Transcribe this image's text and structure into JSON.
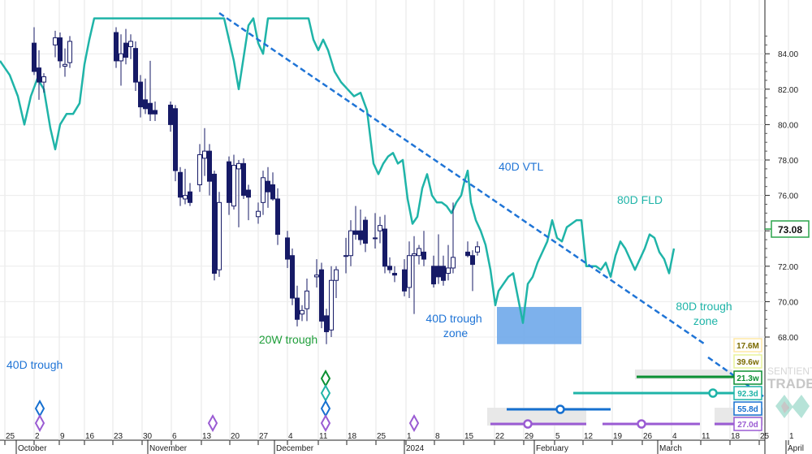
{
  "chart_data": {
    "type": "candlestick",
    "y_axis": {
      "range": [
        67.2,
        85.2
      ],
      "tick_labels": [
        "68.00",
        "70.00",
        "72.00",
        "74.00",
        "76.00",
        "78.00",
        "80.00",
        "82.00",
        "84.00"
      ],
      "position": "right"
    },
    "x_axis": {
      "tick_labels": [
        "25",
        "2",
        "9",
        "16",
        "23",
        "30",
        "6",
        "13",
        "20",
        "27",
        "4",
        "11",
        "18",
        "25",
        "1",
        "8",
        "15",
        "22",
        "29",
        "5",
        "12",
        "19",
        "26",
        "4",
        "11",
        "18",
        "25",
        "1"
      ],
      "month_labels": [
        "October",
        "November",
        "December",
        "2024",
        "February",
        "March",
        "April"
      ]
    },
    "last_price": "73.08",
    "candles": [
      {
        "x": 42,
        "o": 84.6,
        "h": 85.5,
        "l": 82.8,
        "c": 83.0,
        "bull": false
      },
      {
        "x": 48,
        "o": 83.2,
        "h": 84.2,
        "l": 81.4,
        "c": 82.4,
        "bull": false
      },
      {
        "x": 54,
        "o": 82.4,
        "h": 82.9,
        "l": 81.8,
        "c": 82.7,
        "bull": true
      },
      {
        "x": 68,
        "o": 84.5,
        "h": 85.3,
        "l": 83.8,
        "c": 84.9,
        "bull": true
      },
      {
        "x": 74,
        "o": 84.9,
        "h": 85.2,
        "l": 83.2,
        "c": 83.6,
        "bull": false
      },
      {
        "x": 80,
        "o": 83.3,
        "h": 84.3,
        "l": 82.7,
        "c": 83.4,
        "bull": true
      },
      {
        "x": 86,
        "o": 83.5,
        "h": 85.0,
        "l": 83.2,
        "c": 84.7,
        "bull": true
      },
      {
        "x": 143,
        "o": 85.2,
        "h": 85.5,
        "l": 83.2,
        "c": 83.6,
        "bull": false
      },
      {
        "x": 149,
        "o": 83.6,
        "h": 85.1,
        "l": 82.2,
        "c": 84.0,
        "bull": true
      },
      {
        "x": 155,
        "o": 84.6,
        "h": 85.4,
        "l": 83.4,
        "c": 83.8,
        "bull": false
      },
      {
        "x": 161,
        "o": 84.4,
        "h": 85.1,
        "l": 83.7,
        "c": 84.7,
        "bull": true
      },
      {
        "x": 167,
        "o": 84.3,
        "h": 84.7,
        "l": 81.9,
        "c": 82.4,
        "bull": false
      },
      {
        "x": 173,
        "o": 82.4,
        "h": 82.8,
        "l": 80.4,
        "c": 81.0,
        "bull": false
      },
      {
        "x": 179,
        "o": 81.4,
        "h": 82.6,
        "l": 80.6,
        "c": 80.9,
        "bull": false
      },
      {
        "x": 185,
        "o": 81.2,
        "h": 83.6,
        "l": 80.2,
        "c": 80.6,
        "bull": false
      },
      {
        "x": 191,
        "o": 80.8,
        "h": 81.3,
        "l": 80.2,
        "c": 80.6,
        "bull": false
      },
      {
        "x": 210,
        "o": 81.1,
        "h": 81.3,
        "l": 79.6,
        "c": 80.0,
        "bull": false
      },
      {
        "x": 216,
        "o": 80.9,
        "h": 81.1,
        "l": 76.8,
        "c": 77.4,
        "bull": false
      },
      {
        "x": 222,
        "o": 77.3,
        "h": 77.6,
        "l": 75.4,
        "c": 75.9,
        "bull": false
      },
      {
        "x": 228,
        "o": 75.8,
        "h": 77.5,
        "l": 75.5,
        "c": 76.0,
        "bull": true
      },
      {
        "x": 234,
        "o": 76.2,
        "h": 76.7,
        "l": 75.4,
        "c": 75.6,
        "bull": false
      },
      {
        "x": 246,
        "o": 76.6,
        "h": 78.9,
        "l": 76.2,
        "c": 78.3,
        "bull": true
      },
      {
        "x": 252,
        "o": 78.1,
        "h": 79.8,
        "l": 77.1,
        "c": 78.5,
        "bull": true
      },
      {
        "x": 258,
        "o": 78.5,
        "h": 78.9,
        "l": 76.0,
        "c": 76.8,
        "bull": false
      },
      {
        "x": 264,
        "o": 77.2,
        "h": 77.4,
        "l": 71.2,
        "c": 71.6,
        "bull": false
      },
      {
        "x": 270,
        "o": 71.8,
        "h": 76.2,
        "l": 71.4,
        "c": 75.6,
        "bull": true
      },
      {
        "x": 282,
        "o": 77.9,
        "h": 78.2,
        "l": 74.9,
        "c": 75.6,
        "bull": false
      },
      {
        "x": 288,
        "o": 75.4,
        "h": 78.3,
        "l": 75.2,
        "c": 77.7,
        "bull": true
      },
      {
        "x": 294,
        "o": 77.8,
        "h": 78.0,
        "l": 74.2,
        "c": 77.5,
        "bull": true
      },
      {
        "x": 300,
        "o": 77.8,
        "h": 78.1,
        "l": 75.8,
        "c": 76.0,
        "bull": false
      },
      {
        "x": 306,
        "o": 76.3,
        "h": 76.6,
        "l": 74.6,
        "c": 75.9,
        "bull": false
      },
      {
        "x": 318,
        "o": 74.8,
        "h": 75.6,
        "l": 74.4,
        "c": 75.1,
        "bull": true
      },
      {
        "x": 324,
        "o": 75.6,
        "h": 77.4,
        "l": 74.9,
        "c": 77.0,
        "bull": true
      },
      {
        "x": 330,
        "o": 76.8,
        "h": 77.6,
        "l": 75.3,
        "c": 76.2,
        "bull": false
      },
      {
        "x": 336,
        "o": 76.6,
        "h": 77.3,
        "l": 75.7,
        "c": 75.8,
        "bull": false
      },
      {
        "x": 342,
        "o": 75.8,
        "h": 76.4,
        "l": 73.2,
        "c": 73.8,
        "bull": false
      },
      {
        "x": 354,
        "o": 73.6,
        "h": 74.0,
        "l": 71.9,
        "c": 72.4,
        "bull": false
      },
      {
        "x": 360,
        "o": 72.6,
        "h": 73.0,
        "l": 69.8,
        "c": 70.2,
        "bull": false
      },
      {
        "x": 366,
        "o": 70.2,
        "h": 70.9,
        "l": 68.6,
        "c": 69.0,
        "bull": false
      },
      {
        "x": 372,
        "o": 69.3,
        "h": 69.8,
        "l": 68.9,
        "c": 69.5,
        "bull": true
      },
      {
        "x": 378,
        "o": 69.6,
        "h": 71.3,
        "l": 68.9,
        "c": 70.6,
        "bull": true
      },
      {
        "x": 390,
        "o": 71.5,
        "h": 72.4,
        "l": 70.8,
        "c": 71.4,
        "bull": true
      },
      {
        "x": 396,
        "o": 71.8,
        "h": 72.2,
        "l": 68.5,
        "c": 68.9,
        "bull": false
      },
      {
        "x": 402,
        "o": 69.2,
        "h": 69.6,
        "l": 67.6,
        "c": 68.3,
        "bull": false
      },
      {
        "x": 408,
        "o": 68.4,
        "h": 72.0,
        "l": 68.0,
        "c": 71.2,
        "bull": true
      },
      {
        "x": 414,
        "o": 71.2,
        "h": 72.0,
        "l": 70.2,
        "c": 71.8,
        "bull": true
      },
      {
        "x": 426,
        "o": 72.6,
        "h": 73.6,
        "l": 71.6,
        "c": 72.6,
        "bull": true
      },
      {
        "x": 432,
        "o": 72.6,
        "h": 74.6,
        "l": 72.0,
        "c": 74.0,
        "bull": true
      },
      {
        "x": 438,
        "o": 73.8,
        "h": 75.4,
        "l": 73.5,
        "c": 74.0,
        "bull": false
      },
      {
        "x": 444,
        "o": 73.5,
        "h": 75.2,
        "l": 73.2,
        "c": 74.0,
        "bull": false
      },
      {
        "x": 450,
        "o": 74.6,
        "h": 74.8,
        "l": 72.8,
        "c": 73.3,
        "bull": false
      },
      {
        "x": 462,
        "o": 73.6,
        "h": 75.0,
        "l": 73.0,
        "c": 73.6,
        "bull": false
      },
      {
        "x": 468,
        "o": 74.0,
        "h": 74.8,
        "l": 73.3,
        "c": 74.3,
        "bull": true
      },
      {
        "x": 474,
        "o": 74.1,
        "h": 74.9,
        "l": 71.6,
        "c": 72.0,
        "bull": false
      },
      {
        "x": 480,
        "o": 72.0,
        "h": 72.5,
        "l": 71.6,
        "c": 71.8,
        "bull": false
      },
      {
        "x": 486,
        "o": 71.6,
        "h": 72.0,
        "l": 71.1,
        "c": 71.5,
        "bull": false
      },
      {
        "x": 498,
        "o": 71.8,
        "h": 72.4,
        "l": 70.3,
        "c": 70.6,
        "bull": false
      },
      {
        "x": 504,
        "o": 70.8,
        "h": 73.4,
        "l": 70.2,
        "c": 72.6,
        "bull": true
      },
      {
        "x": 510,
        "o": 72.7,
        "h": 73.7,
        "l": 69.3,
        "c": 72.6,
        "bull": true
      },
      {
        "x": 516,
        "o": 72.6,
        "h": 73.2,
        "l": 72.1,
        "c": 73.0,
        "bull": true
      },
      {
        "x": 522,
        "o": 72.8,
        "h": 74.0,
        "l": 72.0,
        "c": 72.4,
        "bull": false
      },
      {
        "x": 534,
        "o": 72.0,
        "h": 72.6,
        "l": 70.8,
        "c": 71.0,
        "bull": false
      },
      {
        "x": 540,
        "o": 71.4,
        "h": 73.8,
        "l": 71.0,
        "c": 72.0,
        "bull": false
      },
      {
        "x": 546,
        "o": 72.0,
        "h": 72.6,
        "l": 70.9,
        "c": 71.2,
        "bull": false
      },
      {
        "x": 552,
        "o": 71.6,
        "h": 73.2,
        "l": 71.2,
        "c": 71.9,
        "bull": true
      },
      {
        "x": 558,
        "o": 71.9,
        "h": 75.6,
        "l": 71.6,
        "c": 72.5,
        "bull": true
      },
      {
        "x": 576,
        "o": 72.8,
        "h": 73.4,
        "l": 72.5,
        "c": 72.6,
        "bull": false
      },
      {
        "x": 582,
        "o": 72.6,
        "h": 72.9,
        "l": 70.6,
        "c": 72.1,
        "bull": false
      },
      {
        "x": 588,
        "o": 72.8,
        "h": 73.4,
        "l": 72.6,
        "c": 73.1,
        "bull": true
      }
    ],
    "fld_line": [
      [
        0,
        83.6
      ],
      [
        12,
        82.8
      ],
      [
        22,
        81.6
      ],
      [
        30,
        80.0
      ],
      [
        38,
        81.6
      ],
      [
        46,
        82.6
      ],
      [
        54,
        82.0
      ],
      [
        62,
        79.8
      ],
      [
        68,
        78.6
      ],
      [
        74,
        80.0
      ],
      [
        82,
        80.6
      ],
      [
        90,
        80.6
      ],
      [
        98,
        81.2
      ],
      [
        104,
        83.4
      ],
      [
        110,
        84.8
      ],
      [
        116,
        86.0
      ],
      [
        276,
        86.0
      ],
      [
        282,
        84.8
      ],
      [
        288,
        83.6
      ],
      [
        294,
        82.0
      ],
      [
        300,
        83.8
      ],
      [
        306,
        85.6
      ],
      [
        312,
        86.0
      ],
      [
        318,
        84.6
      ],
      [
        324,
        84.0
      ],
      [
        330,
        86.0
      ],
      [
        380,
        86.0
      ],
      [
        386,
        84.8
      ],
      [
        392,
        84.2
      ],
      [
        398,
        84.8
      ],
      [
        404,
        84.2
      ],
      [
        412,
        83.0
      ],
      [
        420,
        82.4
      ],
      [
        428,
        82.0
      ],
      [
        436,
        81.6
      ],
      [
        444,
        81.8
      ],
      [
        452,
        80.8
      ],
      [
        460,
        77.8
      ],
      [
        466,
        77.2
      ],
      [
        472,
        77.8
      ],
      [
        478,
        78.2
      ],
      [
        484,
        78.4
      ],
      [
        490,
        77.8
      ],
      [
        496,
        78.0
      ],
      [
        502,
        75.8
      ],
      [
        508,
        74.4
      ],
      [
        514,
        74.8
      ],
      [
        520,
        76.4
      ],
      [
        526,
        77.2
      ],
      [
        532,
        76.0
      ],
      [
        538,
        75.6
      ],
      [
        544,
        75.6
      ],
      [
        550,
        75.4
      ],
      [
        556,
        75.0
      ],
      [
        562,
        75.6
      ],
      [
        568,
        76.0
      ],
      [
        572,
        76.8
      ],
      [
        576,
        77.4
      ],
      [
        580,
        75.6
      ],
      [
        586,
        74.6
      ],
      [
        592,
        74.0
      ],
      [
        598,
        73.2
      ],
      [
        604,
        71.8
      ],
      [
        610,
        69.8
      ],
      [
        614,
        70.6
      ],
      [
        620,
        71.0
      ],
      [
        626,
        71.4
      ],
      [
        632,
        71.6
      ],
      [
        638,
        70.2
      ],
      [
        644,
        68.8
      ],
      [
        650,
        71.0
      ],
      [
        656,
        71.4
      ],
      [
        662,
        72.2
      ],
      [
        668,
        72.8
      ],
      [
        674,
        73.4
      ],
      [
        680,
        74.6
      ],
      [
        686,
        73.6
      ],
      [
        692,
        73.4
      ],
      [
        698,
        74.2
      ],
      [
        704,
        74.4
      ],
      [
        710,
        74.6
      ],
      [
        716,
        74.6
      ],
      [
        722,
        72.0
      ],
      [
        728,
        72.0
      ],
      [
        734,
        72.0
      ],
      [
        740,
        71.8
      ],
      [
        746,
        72.2
      ],
      [
        752,
        71.4
      ],
      [
        758,
        72.6
      ],
      [
        764,
        73.4
      ],
      [
        770,
        73.0
      ],
      [
        776,
        72.4
      ],
      [
        782,
        71.8
      ],
      [
        788,
        72.4
      ],
      [
        794,
        73.0
      ],
      [
        800,
        73.8
      ],
      [
        806,
        73.6
      ],
      [
        812,
        72.8
      ],
      [
        818,
        72.4
      ],
      [
        824,
        71.6
      ],
      [
        830,
        73.0
      ]
    ],
    "vtl_line": [
      [
        270,
        86.3
      ],
      [
        868,
        67.6
      ]
    ],
    "trough_zone_box": {
      "x_start": 612,
      "x_end": 716,
      "y_top": 69.7,
      "y_bottom": 67.6
    },
    "annotations": [
      "40D VTL",
      "80D FLD",
      "40D trough zone",
      "80D trough zone",
      "20W trough",
      "40D trough"
    ],
    "cycle_periods": [
      "17.6M",
      "39.6w",
      "21.3w",
      "92.3d",
      "55.8d",
      "27.0d"
    ],
    "cycle_colors": {
      "17.6M": "#ffe9a6",
      "39.6w": "#e9f39a",
      "21.3w": "#0a8f32",
      "92.3d": "#1fb4a8",
      "55.8d": "#1670d0",
      "27.0d": "#9a5bd3"
    },
    "watermark": "SENTIENT TRADER"
  },
  "colors": {
    "bull": "#ffffff",
    "bear": "#161a66",
    "fld": "#1fb4a8",
    "vtl": "#1f74d6",
    "zone": "#6fa9ea"
  }
}
